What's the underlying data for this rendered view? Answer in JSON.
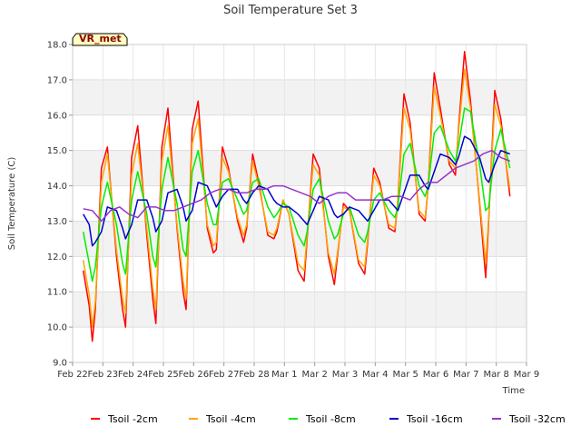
{
  "chart_data": {
    "type": "line",
    "title": "Soil Temperature Set 3",
    "xlabel": "Time",
    "ylabel": "Soil Temperature (C)",
    "station_label": "VR_met",
    "ylim": [
      9.0,
      18.0
    ],
    "yticks": [
      "9.0",
      "10.0",
      "11.0",
      "12.0",
      "13.0",
      "14.0",
      "15.0",
      "16.0",
      "17.0",
      "18.0"
    ],
    "xlim": [
      0,
      15
    ],
    "xticks": [
      "Feb 22",
      "Feb 23",
      "Feb 24",
      "Feb 25",
      "Feb 26",
      "Feb 27",
      "Feb 28",
      "Mar 1",
      "Mar 2",
      "Mar 3",
      "Mar 4",
      "Mar 5",
      "Mar 6",
      "Mar 7",
      "Mar 8",
      "Mar 9"
    ],
    "grid": true,
    "banded_background": true,
    "legend_position": "bottom",
    "series": [
      {
        "name": "Tsoil -2cm",
        "color": "#ff0000",
        "x": [
          0.35,
          0.55,
          0.65,
          0.75,
          0.95,
          1.15,
          1.45,
          1.65,
          1.75,
          1.95,
          2.15,
          2.45,
          2.65,
          2.75,
          2.95,
          3.15,
          3.45,
          3.65,
          3.75,
          3.95,
          4.15,
          4.45,
          4.65,
          4.75,
          4.95,
          5.15,
          5.45,
          5.65,
          5.75,
          5.95,
          6.15,
          6.45,
          6.65,
          6.75,
          6.95,
          7.15,
          7.45,
          7.65,
          7.75,
          7.95,
          8.15,
          8.45,
          8.65,
          8.75,
          8.95,
          9.15,
          9.45,
          9.65,
          9.75,
          9.95,
          10.15,
          10.45,
          10.65,
          10.75,
          10.95,
          11.15,
          11.45,
          11.65,
          11.75,
          11.95,
          12.15,
          12.45,
          12.65,
          12.75,
          12.95,
          13.15,
          13.45,
          13.65,
          13.75,
          13.95,
          14.15,
          14.45
        ],
        "y": [
          11.6,
          10.6,
          9.6,
          10.5,
          14.5,
          15.1,
          12.0,
          10.5,
          10.0,
          14.8,
          15.7,
          12.6,
          10.8,
          10.1,
          15.1,
          16.2,
          12.8,
          11.0,
          10.5,
          15.6,
          16.4,
          12.8,
          12.1,
          12.2,
          15.1,
          14.5,
          13.0,
          12.4,
          12.8,
          14.9,
          14.1,
          12.6,
          12.5,
          12.7,
          13.6,
          13.2,
          11.6,
          11.3,
          12.5,
          14.9,
          14.5,
          12.0,
          11.2,
          12.0,
          13.5,
          13.3,
          11.8,
          11.5,
          12.4,
          14.5,
          14.1,
          12.8,
          12.7,
          13.6,
          16.6,
          15.8,
          13.2,
          13.0,
          14.0,
          17.2,
          16.2,
          14.6,
          14.3,
          15.6,
          17.8,
          16.4,
          13.5,
          11.4,
          13.0,
          16.7,
          15.9,
          13.7
        ]
      },
      {
        "name": "Tsoil -4cm",
        "color": "#ffa500",
        "x": [
          0.35,
          0.55,
          0.65,
          0.75,
          0.95,
          1.15,
          1.45,
          1.65,
          1.75,
          1.95,
          2.15,
          2.45,
          2.65,
          2.75,
          2.95,
          3.15,
          3.45,
          3.65,
          3.75,
          3.95,
          4.15,
          4.45,
          4.65,
          4.75,
          4.95,
          5.15,
          5.45,
          5.65,
          5.75,
          5.95,
          6.15,
          6.45,
          6.65,
          6.75,
          6.95,
          7.15,
          7.45,
          7.65,
          7.75,
          7.95,
          8.15,
          8.45,
          8.65,
          8.75,
          8.95,
          9.15,
          9.45,
          9.65,
          9.75,
          9.95,
          10.15,
          10.45,
          10.65,
          10.75,
          10.95,
          11.15,
          11.45,
          11.65,
          11.75,
          11.95,
          12.15,
          12.45,
          12.65,
          12.75,
          12.95,
          13.15,
          13.45,
          13.65,
          13.75,
          13.95,
          14.15,
          14.45
        ],
        "y": [
          11.9,
          10.9,
          10.0,
          10.7,
          14.1,
          14.9,
          12.2,
          10.8,
          10.4,
          14.3,
          15.2,
          12.8,
          11.1,
          10.5,
          14.7,
          15.7,
          12.9,
          11.3,
          10.8,
          15.2,
          15.9,
          12.9,
          12.3,
          12.4,
          14.8,
          14.4,
          13.1,
          12.6,
          12.9,
          14.7,
          14.0,
          12.7,
          12.6,
          12.8,
          13.6,
          13.2,
          11.8,
          11.6,
          12.6,
          14.6,
          14.3,
          12.1,
          11.5,
          12.1,
          13.4,
          13.3,
          11.9,
          11.7,
          12.5,
          14.3,
          14.0,
          12.9,
          12.8,
          13.6,
          16.2,
          15.6,
          13.3,
          13.1,
          14.0,
          16.8,
          16.0,
          14.7,
          14.5,
          15.5,
          17.3,
          16.2,
          13.6,
          11.8,
          13.1,
          16.3,
          15.7,
          13.9
        ]
      },
      {
        "name": "Tsoil -8cm",
        "color": "#00ee00",
        "x": [
          0.35,
          0.55,
          0.65,
          0.75,
          0.95,
          1.15,
          1.45,
          1.65,
          1.75,
          1.95,
          2.15,
          2.45,
          2.65,
          2.75,
          2.95,
          3.15,
          3.45,
          3.65,
          3.75,
          3.95,
          4.15,
          4.45,
          4.65,
          4.75,
          4.95,
          5.15,
          5.45,
          5.65,
          5.75,
          5.95,
          6.15,
          6.45,
          6.65,
          6.75,
          6.95,
          7.15,
          7.45,
          7.65,
          7.75,
          7.95,
          8.15,
          8.45,
          8.65,
          8.75,
          8.95,
          9.15,
          9.45,
          9.65,
          9.75,
          9.95,
          10.15,
          10.45,
          10.65,
          10.75,
          10.95,
          11.15,
          11.45,
          11.65,
          11.75,
          11.95,
          12.15,
          12.45,
          12.65,
          12.75,
          12.95,
          13.15,
          13.45,
          13.65,
          13.75,
          13.95,
          14.15,
          14.45
        ],
        "y": [
          12.7,
          11.8,
          11.3,
          11.7,
          13.4,
          14.1,
          12.9,
          11.8,
          11.5,
          13.6,
          14.4,
          13.2,
          12.0,
          11.7,
          13.9,
          14.8,
          13.5,
          12.2,
          12.0,
          14.4,
          15.0,
          13.5,
          12.9,
          12.9,
          14.1,
          14.2,
          13.6,
          13.2,
          13.3,
          14.1,
          14.2,
          13.4,
          13.1,
          13.2,
          13.5,
          13.4,
          12.6,
          12.3,
          12.7,
          13.9,
          14.2,
          13.0,
          12.5,
          12.6,
          13.2,
          13.4,
          12.6,
          12.4,
          12.7,
          13.6,
          13.8,
          13.3,
          13.1,
          13.4,
          14.9,
          15.2,
          14.0,
          13.7,
          14.0,
          15.5,
          15.7,
          15.0,
          14.7,
          15.1,
          16.2,
          16.1,
          14.6,
          13.3,
          13.4,
          15.0,
          15.6,
          14.5
        ]
      },
      {
        "name": "Tsoil -16cm",
        "color": "#0000cd",
        "x": [
          0.35,
          0.55,
          0.65,
          0.75,
          0.95,
          1.15,
          1.45,
          1.65,
          1.75,
          1.95,
          2.15,
          2.45,
          2.65,
          2.75,
          2.95,
          3.15,
          3.45,
          3.65,
          3.75,
          3.95,
          4.15,
          4.45,
          4.65,
          4.75,
          4.95,
          5.15,
          5.45,
          5.65,
          5.75,
          5.95,
          6.15,
          6.45,
          6.65,
          6.75,
          6.95,
          7.15,
          7.45,
          7.65,
          7.75,
          7.95,
          8.15,
          8.45,
          8.65,
          8.75,
          8.95,
          9.15,
          9.45,
          9.65,
          9.75,
          9.95,
          10.15,
          10.45,
          10.65,
          10.75,
          10.95,
          11.15,
          11.45,
          11.65,
          11.75,
          11.95,
          12.15,
          12.45,
          12.65,
          12.75,
          12.95,
          13.15,
          13.45,
          13.65,
          13.75,
          13.95,
          14.15,
          14.45
        ],
        "y": [
          13.2,
          12.9,
          12.3,
          12.4,
          12.7,
          13.4,
          13.3,
          12.8,
          12.5,
          12.9,
          13.6,
          13.6,
          13.1,
          12.7,
          13.0,
          13.8,
          13.9,
          13.4,
          13.0,
          13.3,
          14.1,
          14.0,
          13.6,
          13.4,
          13.7,
          13.9,
          13.9,
          13.6,
          13.5,
          13.8,
          14.0,
          13.9,
          13.6,
          13.5,
          13.4,
          13.4,
          13.2,
          13.0,
          12.9,
          13.3,
          13.7,
          13.6,
          13.2,
          13.1,
          13.2,
          13.4,
          13.3,
          13.1,
          13.0,
          13.3,
          13.6,
          13.6,
          13.4,
          13.3,
          13.8,
          14.3,
          14.3,
          14.0,
          13.9,
          14.4,
          14.9,
          14.8,
          14.6,
          14.8,
          15.4,
          15.3,
          14.8,
          14.2,
          14.1,
          14.6,
          15.0,
          14.9
        ]
      },
      {
        "name": "Tsoil -32cm",
        "color": "#9932cc",
        "x": [
          0.35,
          0.65,
          0.95,
          1.25,
          1.55,
          1.85,
          2.15,
          2.45,
          2.75,
          3.05,
          3.35,
          3.65,
          3.95,
          4.25,
          4.55,
          4.85,
          5.15,
          5.45,
          5.75,
          6.05,
          6.35,
          6.65,
          6.95,
          7.25,
          7.55,
          7.85,
          8.15,
          8.45,
          8.75,
          9.05,
          9.35,
          9.65,
          9.95,
          10.25,
          10.55,
          10.85,
          11.15,
          11.45,
          11.75,
          12.05,
          12.35,
          12.65,
          12.95,
          13.25,
          13.55,
          13.85,
          14.15,
          14.45
        ],
        "y": [
          13.35,
          13.3,
          13.0,
          13.3,
          13.4,
          13.2,
          13.1,
          13.4,
          13.4,
          13.3,
          13.3,
          13.4,
          13.5,
          13.6,
          13.8,
          13.9,
          13.9,
          13.8,
          13.8,
          13.9,
          13.9,
          14.0,
          14.0,
          13.9,
          13.8,
          13.7,
          13.5,
          13.7,
          13.8,
          13.8,
          13.6,
          13.6,
          13.6,
          13.6,
          13.7,
          13.7,
          13.6,
          13.9,
          14.1,
          14.1,
          14.3,
          14.5,
          14.6,
          14.7,
          14.9,
          15.0,
          14.8,
          14.7
        ]
      }
    ]
  }
}
